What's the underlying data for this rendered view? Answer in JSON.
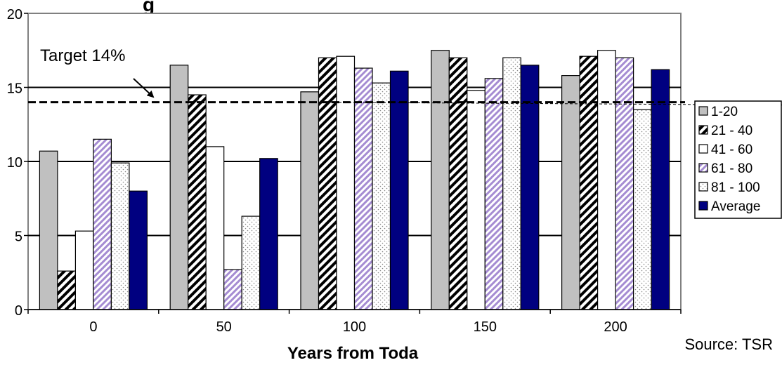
{
  "chart_data": {
    "type": "bar",
    "categories": [
      "0",
      "50",
      "100",
      "150",
      "200"
    ],
    "series": [
      {
        "name": "1-20",
        "values": [
          10.7,
          16.5,
          14.7,
          17.5,
          15.8
        ],
        "fill": "#c0c0c0",
        "pattern": "solid"
      },
      {
        "name": "21 - 40",
        "values": [
          2.6,
          14.5,
          17.0,
          17.0,
          17.1
        ],
        "fill": "#000000",
        "pattern": "diagonal-black-white"
      },
      {
        "name": "41 - 60",
        "values": [
          5.3,
          11.0,
          17.1,
          14.8,
          17.5
        ],
        "fill": "#ffffff",
        "pattern": "solid"
      },
      {
        "name": "61 - 80",
        "values": [
          11.5,
          2.7,
          16.3,
          15.6,
          17.0
        ],
        "fill": "#a58cd2",
        "pattern": "diagonal-purple-white"
      },
      {
        "name": "81 - 100",
        "values": [
          9.9,
          6.3,
          15.3,
          17.0,
          13.5
        ],
        "fill": "#ffffff",
        "pattern": "dotted"
      },
      {
        "name": "Average",
        "values": [
          8.0,
          10.2,
          16.1,
          16.5,
          16.2
        ],
        "fill": "#000080",
        "pattern": "solid"
      }
    ],
    "xlabel": "Years from Toda",
    "ylabel": "",
    "ylim": [
      0,
      20
    ],
    "yticks": [
      "0",
      "5",
      "10",
      "15",
      "20"
    ],
    "grid": true,
    "legend_position": "right",
    "reference_line": {
      "value": 14,
      "label": "Target 14%",
      "style": "dashed"
    },
    "annotations": {
      "source": "Source: TSR",
      "partial_title": "g"
    }
  }
}
